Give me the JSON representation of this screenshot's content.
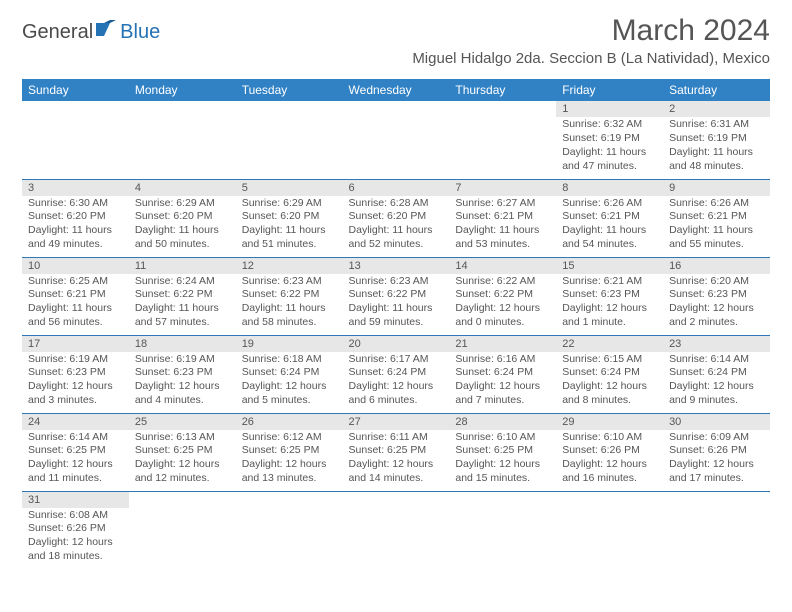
{
  "brand": {
    "part1": "General",
    "part2": "Blue"
  },
  "title": "March 2024",
  "location": "Miguel Hidalgo 2da. Seccion B (La Natividad), Mexico",
  "colors": {
    "header_bg": "#3082c4",
    "header_text": "#ffffff",
    "daynum_bg": "#e7e7e7",
    "text": "#565656",
    "rule": "#2e78b8",
    "brand_gray": "#4a4a4a",
    "brand_blue": "#2572b4"
  },
  "dow": [
    "Sunday",
    "Monday",
    "Tuesday",
    "Wednesday",
    "Thursday",
    "Friday",
    "Saturday"
  ],
  "weeks": [
    [
      null,
      null,
      null,
      null,
      null,
      {
        "n": "1",
        "sr": "Sunrise: 6:32 AM",
        "ss": "Sunset: 6:19 PM",
        "dl": "Daylight: 11 hours and 47 minutes."
      },
      {
        "n": "2",
        "sr": "Sunrise: 6:31 AM",
        "ss": "Sunset: 6:19 PM",
        "dl": "Daylight: 11 hours and 48 minutes."
      }
    ],
    [
      {
        "n": "3",
        "sr": "Sunrise: 6:30 AM",
        "ss": "Sunset: 6:20 PM",
        "dl": "Daylight: 11 hours and 49 minutes."
      },
      {
        "n": "4",
        "sr": "Sunrise: 6:29 AM",
        "ss": "Sunset: 6:20 PM",
        "dl": "Daylight: 11 hours and 50 minutes."
      },
      {
        "n": "5",
        "sr": "Sunrise: 6:29 AM",
        "ss": "Sunset: 6:20 PM",
        "dl": "Daylight: 11 hours and 51 minutes."
      },
      {
        "n": "6",
        "sr": "Sunrise: 6:28 AM",
        "ss": "Sunset: 6:20 PM",
        "dl": "Daylight: 11 hours and 52 minutes."
      },
      {
        "n": "7",
        "sr": "Sunrise: 6:27 AM",
        "ss": "Sunset: 6:21 PM",
        "dl": "Daylight: 11 hours and 53 minutes."
      },
      {
        "n": "8",
        "sr": "Sunrise: 6:26 AM",
        "ss": "Sunset: 6:21 PM",
        "dl": "Daylight: 11 hours and 54 minutes."
      },
      {
        "n": "9",
        "sr": "Sunrise: 6:26 AM",
        "ss": "Sunset: 6:21 PM",
        "dl": "Daylight: 11 hours and 55 minutes."
      }
    ],
    [
      {
        "n": "10",
        "sr": "Sunrise: 6:25 AM",
        "ss": "Sunset: 6:21 PM",
        "dl": "Daylight: 11 hours and 56 minutes."
      },
      {
        "n": "11",
        "sr": "Sunrise: 6:24 AM",
        "ss": "Sunset: 6:22 PM",
        "dl": "Daylight: 11 hours and 57 minutes."
      },
      {
        "n": "12",
        "sr": "Sunrise: 6:23 AM",
        "ss": "Sunset: 6:22 PM",
        "dl": "Daylight: 11 hours and 58 minutes."
      },
      {
        "n": "13",
        "sr": "Sunrise: 6:23 AM",
        "ss": "Sunset: 6:22 PM",
        "dl": "Daylight: 11 hours and 59 minutes."
      },
      {
        "n": "14",
        "sr": "Sunrise: 6:22 AM",
        "ss": "Sunset: 6:22 PM",
        "dl": "Daylight: 12 hours and 0 minutes."
      },
      {
        "n": "15",
        "sr": "Sunrise: 6:21 AM",
        "ss": "Sunset: 6:23 PM",
        "dl": "Daylight: 12 hours and 1 minute."
      },
      {
        "n": "16",
        "sr": "Sunrise: 6:20 AM",
        "ss": "Sunset: 6:23 PM",
        "dl": "Daylight: 12 hours and 2 minutes."
      }
    ],
    [
      {
        "n": "17",
        "sr": "Sunrise: 6:19 AM",
        "ss": "Sunset: 6:23 PM",
        "dl": "Daylight: 12 hours and 3 minutes."
      },
      {
        "n": "18",
        "sr": "Sunrise: 6:19 AM",
        "ss": "Sunset: 6:23 PM",
        "dl": "Daylight: 12 hours and 4 minutes."
      },
      {
        "n": "19",
        "sr": "Sunrise: 6:18 AM",
        "ss": "Sunset: 6:24 PM",
        "dl": "Daylight: 12 hours and 5 minutes."
      },
      {
        "n": "20",
        "sr": "Sunrise: 6:17 AM",
        "ss": "Sunset: 6:24 PM",
        "dl": "Daylight: 12 hours and 6 minutes."
      },
      {
        "n": "21",
        "sr": "Sunrise: 6:16 AM",
        "ss": "Sunset: 6:24 PM",
        "dl": "Daylight: 12 hours and 7 minutes."
      },
      {
        "n": "22",
        "sr": "Sunrise: 6:15 AM",
        "ss": "Sunset: 6:24 PM",
        "dl": "Daylight: 12 hours and 8 minutes."
      },
      {
        "n": "23",
        "sr": "Sunrise: 6:14 AM",
        "ss": "Sunset: 6:24 PM",
        "dl": "Daylight: 12 hours and 9 minutes."
      }
    ],
    [
      {
        "n": "24",
        "sr": "Sunrise: 6:14 AM",
        "ss": "Sunset: 6:25 PM",
        "dl": "Daylight: 12 hours and 11 minutes."
      },
      {
        "n": "25",
        "sr": "Sunrise: 6:13 AM",
        "ss": "Sunset: 6:25 PM",
        "dl": "Daylight: 12 hours and 12 minutes."
      },
      {
        "n": "26",
        "sr": "Sunrise: 6:12 AM",
        "ss": "Sunset: 6:25 PM",
        "dl": "Daylight: 12 hours and 13 minutes."
      },
      {
        "n": "27",
        "sr": "Sunrise: 6:11 AM",
        "ss": "Sunset: 6:25 PM",
        "dl": "Daylight: 12 hours and 14 minutes."
      },
      {
        "n": "28",
        "sr": "Sunrise: 6:10 AM",
        "ss": "Sunset: 6:25 PM",
        "dl": "Daylight: 12 hours and 15 minutes."
      },
      {
        "n": "29",
        "sr": "Sunrise: 6:10 AM",
        "ss": "Sunset: 6:26 PM",
        "dl": "Daylight: 12 hours and 16 minutes."
      },
      {
        "n": "30",
        "sr": "Sunrise: 6:09 AM",
        "ss": "Sunset: 6:26 PM",
        "dl": "Daylight: 12 hours and 17 minutes."
      }
    ],
    [
      {
        "n": "31",
        "sr": "Sunrise: 6:08 AM",
        "ss": "Sunset: 6:26 PM",
        "dl": "Daylight: 12 hours and 18 minutes."
      },
      null,
      null,
      null,
      null,
      null,
      null
    ]
  ]
}
